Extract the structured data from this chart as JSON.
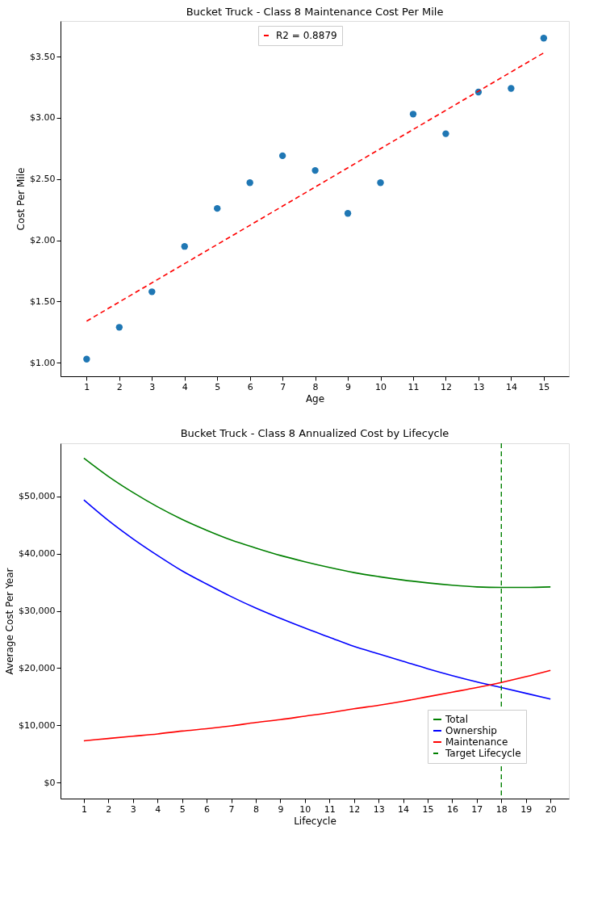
{
  "chart_data": [
    {
      "type": "scatter",
      "title": "Bucket Truck - Class 8 Maintenance Cost Per Mile",
      "xlabel": "Age",
      "ylabel": "Cost Per Mile",
      "x": [
        1,
        2,
        3,
        4,
        5,
        6,
        7,
        8,
        9,
        10,
        11,
        12,
        13,
        14,
        15
      ],
      "series": [
        {
          "type": "scatter",
          "color": "#1f77b4",
          "marker": "circle",
          "values": [
            1.03,
            1.29,
            1.58,
            1.95,
            2.26,
            2.47,
            2.69,
            2.57,
            2.22,
            2.47,
            3.03,
            2.87,
            3.21,
            3.24,
            3.65
          ]
        },
        {
          "type": "line",
          "name": "R2 = 0.8879",
          "color": "#ff0000",
          "line_style": "dashed",
          "marker": "none",
          "x": [
            1,
            15
          ],
          "values": [
            1.34,
            3.53
          ]
        }
      ],
      "xlim": [
        0.2,
        15.77
      ],
      "xticks": [
        1,
        2,
        3,
        4,
        5,
        6,
        7,
        8,
        9,
        10,
        11,
        12,
        13,
        14,
        15
      ],
      "ylim": [
        0.89,
        3.79
      ],
      "yticks": [
        {
          "value": 1.0,
          "label": "$1.00"
        },
        {
          "value": 1.5,
          "label": "$1.50"
        },
        {
          "value": 2.0,
          "label": "$2.00"
        },
        {
          "value": 2.5,
          "label": "$2.50"
        },
        {
          "value": 3.0,
          "label": "$3.00"
        },
        {
          "value": 3.5,
          "label": "$3.50"
        }
      ],
      "grid": false,
      "legend": "top"
    },
    {
      "type": "line",
      "title": "Bucket Truck - Class 8 Annualized Cost by Lifecycle",
      "xlabel": "Lifecycle",
      "ylabel": "Average Cost Per Year",
      "x": [
        1,
        2,
        3,
        4,
        5,
        6,
        7,
        8,
        9,
        10,
        11,
        12,
        13,
        14,
        15,
        16,
        17,
        18,
        19,
        20
      ],
      "series": [
        {
          "name": "Total",
          "color": "#008000",
          "line_style": "solid",
          "values": [
            56700,
            53500,
            50700,
            48200,
            46000,
            44100,
            42400,
            41000,
            39700,
            38600,
            37600,
            36700,
            36000,
            35400,
            34900,
            34500,
            34200,
            34100,
            34100,
            34200
          ]
        },
        {
          "name": "Ownership",
          "color": "#0000ff",
          "line_style": "solid",
          "values": [
            49400,
            45800,
            42600,
            39700,
            37000,
            34700,
            32500,
            30500,
            28700,
            27000,
            25400,
            23800,
            22500,
            21200,
            19900,
            18700,
            17600,
            16600,
            15600,
            14600
          ]
        },
        {
          "name": "Maintenance",
          "color": "#ff0000",
          "line_style": "solid",
          "values": [
            7300,
            7700,
            8100,
            8500,
            9000,
            9400,
            9900,
            10500,
            11000,
            11600,
            12200,
            12900,
            13500,
            14200,
            15000,
            15800,
            16600,
            17500,
            18500,
            19600
          ]
        }
      ],
      "ref_lines": [
        {
          "axis": "x",
          "value": 18,
          "label": "Target Lifecycle",
          "color": "#008000",
          "line_style": "dashed"
        }
      ],
      "xlim": [
        0.05,
        20.75
      ],
      "xticks": [
        1,
        2,
        3,
        4,
        5,
        6,
        7,
        8,
        9,
        10,
        11,
        12,
        13,
        14,
        15,
        16,
        17,
        18,
        19,
        20
      ],
      "ylim": [
        -2800,
        59300
      ],
      "yticks": [
        {
          "value": 0,
          "label": "$0"
        },
        {
          "value": 10000,
          "label": "$10,000"
        },
        {
          "value": 20000,
          "label": "$20,000"
        },
        {
          "value": 30000,
          "label": "$30,000"
        },
        {
          "value": 40000,
          "label": "$40,000"
        },
        {
          "value": 50000,
          "label": "$50,000"
        }
      ],
      "grid": false,
      "legend": "bottom right",
      "marker": "none"
    }
  ]
}
